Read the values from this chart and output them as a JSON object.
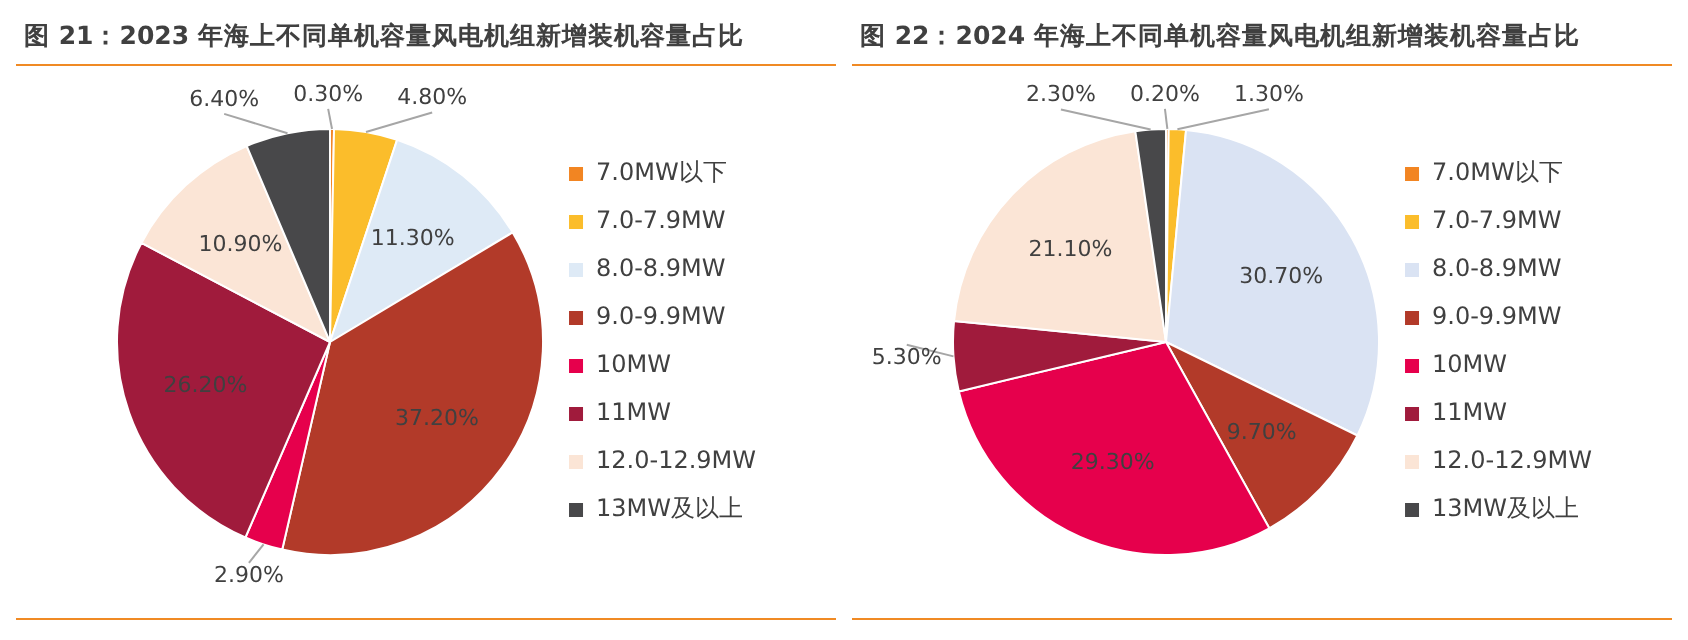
{
  "chart_data": [
    {
      "type": "pie",
      "title": "图 21：2023 年海上不同单机容量风电机组新增装机容量占比",
      "categories": [
        "7.0MW以下",
        "7.0-7.9MW",
        "8.0-8.9MW",
        "9.0-9.9MW",
        "10MW",
        "11MW",
        "12.0-12.9MW",
        "13MW及以上"
      ],
      "values": [
        0.3,
        4.8,
        11.3,
        37.2,
        2.9,
        26.2,
        10.9,
        6.4
      ],
      "value_labels": [
        "0.30%",
        "4.80%",
        "11.30%",
        "37.20%",
        "2.90%",
        "26.20%",
        "10.90%",
        "6.40%"
      ],
      "colors": [
        "#f28522",
        "#fbbd2b",
        "#deeaf6",
        "#b23a29",
        "#e6004c",
        "#a01b3c",
        "#fbe5d6",
        "#48484a"
      ],
      "legend": "right"
    },
    {
      "type": "pie",
      "title": "图 22：2024 年海上不同单机容量风电机组新增装机容量占比",
      "categories": [
        "7.0MW以下",
        "7.0-7.9MW",
        "8.0-8.9MW",
        "9.0-9.9MW",
        "10MW",
        "11MW",
        "12.0-12.9MW",
        "13MW及以上"
      ],
      "values": [
        0.2,
        1.3,
        30.7,
        9.7,
        29.3,
        5.3,
        21.1,
        2.3
      ],
      "value_labels": [
        "0.20%",
        "1.30%",
        "30.70%",
        "9.70%",
        "29.30%",
        "5.30%",
        "21.10%",
        "2.30%"
      ],
      "colors": [
        "#f28522",
        "#fbbd2b",
        "#dae3f3",
        "#b23a29",
        "#e6004c",
        "#a01b3c",
        "#fbe5d6",
        "#48484a"
      ],
      "legend": "right"
    }
  ]
}
